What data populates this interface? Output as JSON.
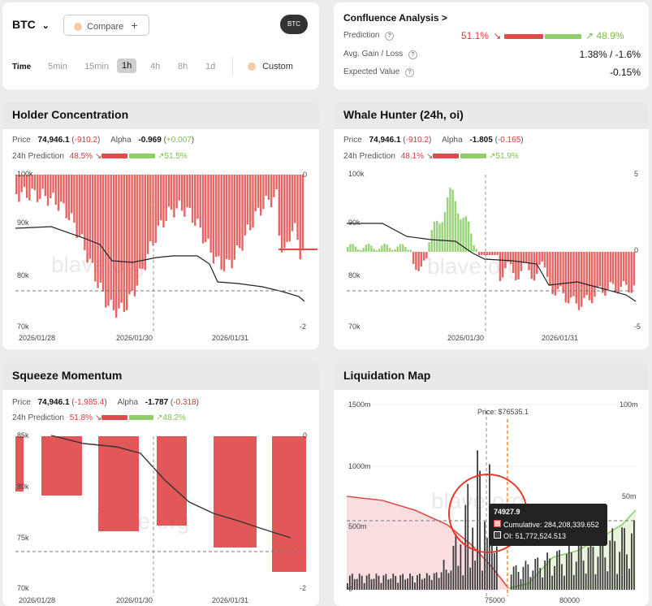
{
  "top": {
    "symbol": "BTC",
    "compare_label": "Compare",
    "btc_badge": "BTC",
    "time_label": "Time",
    "timeframes": [
      "5min",
      "15min",
      "1h",
      "4h",
      "8h",
      "1d"
    ],
    "active_timeframe": "1h",
    "custom_label": "Custom"
  },
  "confluence": {
    "title": "Confluence Analysis >",
    "prediction_label": "Prediction",
    "pred_red": "51.1%",
    "pred_green": "48.9%",
    "gain_label": "Avg. Gain / Loss",
    "gain_value": "1.38% / -1.6%",
    "ev_label": "Expected Value",
    "ev_value": "-0.15%"
  },
  "holder": {
    "title": "Holder Concentration",
    "price_label": "Price",
    "price": "74,946.1",
    "price_change": "-910.2",
    "alpha_label": "Alpha",
    "alpha": "-0.969",
    "alpha_change": "+0.007",
    "pred_label": "24h Prediction",
    "pred_red": "48.5%",
    "pred_green": "51.5%",
    "y_left": [
      "100k",
      "90k",
      "80k",
      "70k"
    ],
    "y_right": [
      "0",
      "-2"
    ],
    "x": [
      "2026/01/28",
      "2026/01/30",
      "2026/01/31"
    ],
    "watermark": "blave.org"
  },
  "whale": {
    "title": "Whale Hunter (24h, oi)",
    "price_label": "Price",
    "price": "74,946.1",
    "price_change": "-910.2",
    "alpha_label": "Alpha",
    "alpha": "-1.805",
    "alpha_change": "-0.165",
    "pred_label": "24h Prediction",
    "pred_red": "48.1%",
    "pred_green": "51.9%",
    "y_left": [
      "100k",
      "90k",
      "80k",
      "70k"
    ],
    "y_right": [
      "5",
      "0",
      "-5"
    ],
    "x": [
      "2026/01/30",
      "2026/01/31"
    ],
    "watermark": "blave.org"
  },
  "squeeze": {
    "title": "Squeeze Momentum",
    "price_label": "Price",
    "price": "74,946.1",
    "price_change": "-1,985.4",
    "alpha_label": "Alpha",
    "alpha": "-1.787",
    "alpha_change": "-0.318",
    "pred_label": "24h Prediction",
    "pred_red": "51.8%",
    "pred_green": "48.2%",
    "y_left": [
      "85k",
      "80k",
      "75k",
      "70k"
    ],
    "y_right": [
      "0",
      "-2"
    ],
    "x": [
      "2026/01/28",
      "2026/01/30",
      "2026/01/31"
    ],
    "watermark": "blave.org"
  },
  "liq": {
    "title": "Liquidation Map",
    "y_left": [
      "1500m",
      "1000m",
      "500m",
      "0"
    ],
    "y_right": [
      "100m",
      "50m"
    ],
    "x": [
      "75000",
      "80000"
    ],
    "price_tag": "Price: $76535.1",
    "tooltip_title": "74927.9",
    "tooltip_cum": "Cumulative: 284,208,339.652",
    "tooltip_oi": "OI: 51,772,524.513",
    "watermark": "blave.org"
  },
  "colors": {
    "red": "#e04a4a",
    "green": "#8fce6a",
    "accent": "#f0883a"
  }
}
